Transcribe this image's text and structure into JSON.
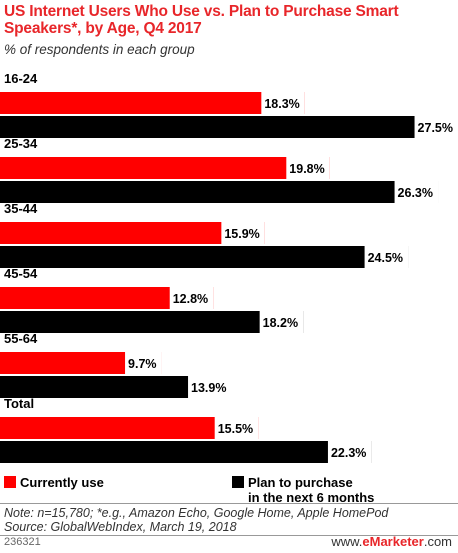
{
  "title": "US Internet Users Who Use vs. Plan to Purchase Smart Speakers*, by Age, Q4 2017",
  "subtitle": "% of respondents in each group",
  "legend": {
    "currently_use": "Currently use",
    "plan_line1": "Plan to purchase",
    "plan_line2": "in the next 6 months"
  },
  "note": "Note: n=15,780; *e.g., Amazon Echo, Google Home, Apple HomePod",
  "source": "Source: GlobalWebIndex, March 19, 2018",
  "chart_id": "236321",
  "brand": {
    "prefix": "www.",
    "name": "eMarketer",
    "suffix": ".com"
  },
  "colors": {
    "currently_use": "#ff0000",
    "plan": "#000000"
  },
  "chart_data": {
    "type": "bar",
    "orientation": "horizontal",
    "categories": [
      "16-24",
      "25-34",
      "35-44",
      "45-54",
      "55-64",
      "Total"
    ],
    "series": [
      {
        "name": "Currently use",
        "values": [
          18.3,
          19.8,
          15.9,
          12.8,
          9.7,
          15.5
        ]
      },
      {
        "name": "Plan to purchase in the next 6 months",
        "values": [
          27.5,
          26.3,
          24.5,
          18.2,
          13.9,
          22.3
        ]
      }
    ],
    "xlim": [
      0,
      27.5
    ],
    "unit": "%",
    "grid": false
  }
}
